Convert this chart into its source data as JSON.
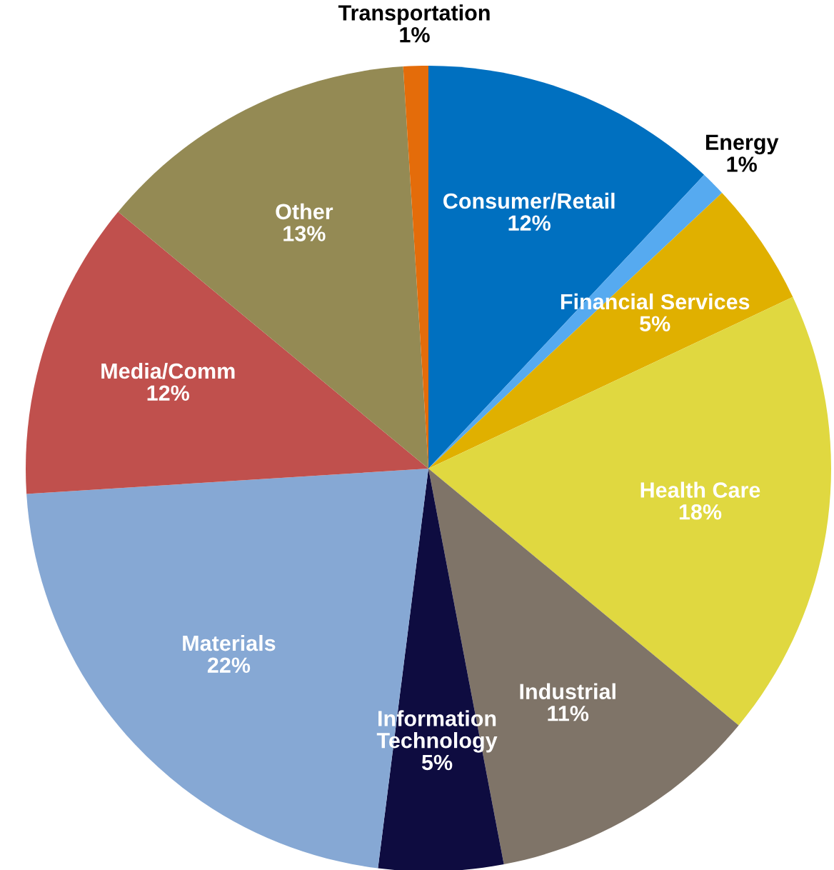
{
  "chart_data": {
    "type": "pie",
    "categories": [
      "Consumer/Retail",
      "Energy",
      "Financial Services",
      "Health Care",
      "Industrial",
      "Information\nTechnology",
      "Materials",
      "Media/Comm",
      "Other",
      "Transportation"
    ],
    "values": [
      12,
      1,
      5,
      18,
      11,
      5,
      22,
      12,
      13,
      1
    ],
    "value_labels": [
      "12%",
      "1%",
      "5%",
      "18%",
      "11%",
      "5%",
      "22%",
      "12%",
      "13%",
      "1%"
    ],
    "colors": [
      "#0070c0",
      "#56aaf0",
      "#e0b000",
      "#e0d840",
      "#7f7468",
      "#0e0c40",
      "#86a8d4",
      "#c0504d",
      "#948a54",
      "#e46c0a"
    ],
    "legend": false
  }
}
